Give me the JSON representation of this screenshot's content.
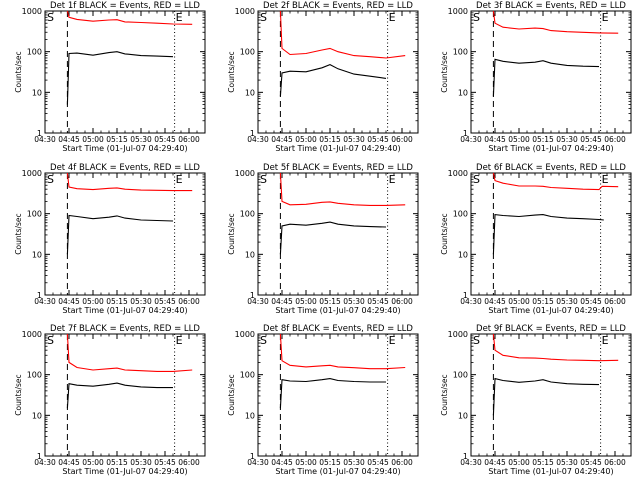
{
  "colors": {
    "background": "#ffffff",
    "axes": "#000000",
    "events": "#000000",
    "lld": "#ff0000"
  },
  "chart_data": [
    {
      "type": "line",
      "title": "Det 1f BLACK = Events, RED = LLD",
      "xlabel": "Start Time (01-Jul-07 04:29:40)",
      "ylabel": "Counts/sec",
      "x_ticks": [
        "04:30",
        "04:45",
        "05:00",
        "05:15",
        "05:30",
        "05:45",
        "06:00"
      ],
      "x_tick_minutes": [
        0,
        15,
        30,
        45,
        60,
        75,
        90
      ],
      "y_ticks": [
        "1",
        "10",
        "100",
        "1000"
      ],
      "yscale": "log",
      "ylim": [
        1,
        1000
      ],
      "xlim_minutes": [
        0,
        100
      ],
      "start_marker": {
        "label": "S",
        "minute": 14
      },
      "end_marker": {
        "label": "E",
        "minute": 81
      },
      "dashed_line_minute": 14,
      "dotted_line_minute": 81,
      "series": [
        {
          "name": "BLACK = Events",
          "color": "#000000",
          "x": [
            14,
            15,
            20,
            30,
            40,
            45,
            50,
            60,
            70,
            80
          ],
          "y": [
            5,
            90,
            92,
            82,
            95,
            100,
            88,
            80,
            78,
            75
          ]
        },
        {
          "name": "RED = LLD",
          "color": "#ff0000",
          "x": [
            14,
            15,
            20,
            30,
            40,
            45,
            50,
            60,
            70,
            80,
            92
          ],
          "y": [
            1000,
            700,
            620,
            560,
            600,
            610,
            540,
            520,
            500,
            480,
            470
          ]
        }
      ]
    },
    {
      "type": "line",
      "title": "Det 2f BLACK = Events, RED = LLD",
      "xlabel": "Start Time (01-Jul-07 04:29:40)",
      "ylabel": "Counts/sec",
      "x_ticks": [
        "04:30",
        "04:45",
        "05:00",
        "05:15",
        "05:30",
        "05:45",
        "06:00"
      ],
      "x_tick_minutes": [
        0,
        15,
        30,
        45,
        60,
        75,
        90
      ],
      "y_ticks": [
        "1",
        "10",
        "100",
        "1000"
      ],
      "yscale": "log",
      "ylim": [
        1,
        1000
      ],
      "xlim_minutes": [
        0,
        100
      ],
      "start_marker": {
        "label": "S",
        "minute": 14
      },
      "end_marker": {
        "label": "E",
        "minute": 81
      },
      "dashed_line_minute": 14,
      "dotted_line_minute": 81,
      "series": [
        {
          "name": "BLACK = Events",
          "color": "#000000",
          "x": [
            14,
            15,
            20,
            30,
            40,
            45,
            50,
            60,
            70,
            80
          ],
          "y": [
            8,
            30,
            33,
            32,
            40,
            48,
            38,
            28,
            25,
            22
          ]
        },
        {
          "name": "RED = LLD",
          "color": "#ff0000",
          "x": [
            14,
            15,
            20,
            30,
            40,
            45,
            50,
            60,
            70,
            80,
            92
          ],
          "y": [
            1000,
            120,
            85,
            90,
            110,
            120,
            100,
            80,
            75,
            70,
            80
          ]
        }
      ]
    },
    {
      "type": "line",
      "title": "Det 3f BLACK = Events, RED = LLD",
      "xlabel": "Start Time (01-Jul-07 04:29:40)",
      "ylabel": "Counts/sec",
      "x_ticks": [
        "04:30",
        "04:45",
        "05:00",
        "05:15",
        "05:30",
        "05:45",
        "06:00"
      ],
      "x_tick_minutes": [
        0,
        15,
        30,
        45,
        60,
        75,
        90
      ],
      "y_ticks": [
        "1",
        "10",
        "100",
        "1000"
      ],
      "yscale": "log",
      "ylim": [
        1,
        1000
      ],
      "xlim_minutes": [
        0,
        100
      ],
      "start_marker": {
        "label": "S",
        "minute": 14
      },
      "end_marker": {
        "label": "E",
        "minute": 81
      },
      "dashed_line_minute": 14,
      "dotted_line_minute": 81,
      "series": [
        {
          "name": "BLACK = Events",
          "color": "#000000",
          "x": [
            14,
            15,
            20,
            30,
            40,
            45,
            50,
            60,
            70,
            80
          ],
          "y": [
            8,
            65,
            58,
            52,
            55,
            60,
            52,
            46,
            44,
            43
          ]
        },
        {
          "name": "RED = LLD",
          "color": "#ff0000",
          "x": [
            14,
            15,
            20,
            30,
            40,
            45,
            50,
            60,
            70,
            80,
            92
          ],
          "y": [
            1000,
            500,
            400,
            360,
            380,
            370,
            330,
            310,
            300,
            290,
            285
          ]
        }
      ]
    },
    {
      "type": "line",
      "title": "Det 4f BLACK = Events, RED = LLD",
      "xlabel": "Start Time (01-Jul-07 04:29:40)",
      "ylabel": "Counts/sec",
      "x_ticks": [
        "04:30",
        "04:45",
        "05:00",
        "05:15",
        "05:30",
        "05:45",
        "06:00"
      ],
      "x_tick_minutes": [
        0,
        15,
        30,
        45,
        60,
        75,
        90
      ],
      "y_ticks": [
        "1",
        "10",
        "100",
        "1000"
      ],
      "yscale": "log",
      "ylim": [
        1,
        1000
      ],
      "xlim_minutes": [
        0,
        100
      ],
      "start_marker": {
        "label": "S",
        "minute": 14
      },
      "end_marker": {
        "label": "E",
        "minute": 81
      },
      "dashed_line_minute": 14,
      "dotted_line_minute": 81,
      "series": [
        {
          "name": "BLACK = Events",
          "color": "#000000",
          "x": [
            14,
            15,
            20,
            30,
            40,
            45,
            50,
            60,
            70,
            80
          ],
          "y": [
            10,
            90,
            85,
            75,
            82,
            88,
            78,
            70,
            68,
            66
          ]
        },
        {
          "name": "RED = LLD",
          "color": "#ff0000",
          "x": [
            14,
            15,
            20,
            30,
            40,
            45,
            50,
            60,
            70,
            80,
            92
          ],
          "y": [
            1000,
            450,
            410,
            390,
            420,
            430,
            400,
            380,
            375,
            370,
            370
          ]
        }
      ]
    },
    {
      "type": "line",
      "title": "Det 5f BLACK = Events, RED = LLD",
      "xlabel": "Start Time (01-Jul-07 04:29:40)",
      "ylabel": "Counts/sec",
      "x_ticks": [
        "04:30",
        "04:45",
        "05:00",
        "05:15",
        "05:30",
        "05:45",
        "06:00"
      ],
      "x_tick_minutes": [
        0,
        15,
        30,
        45,
        60,
        75,
        90
      ],
      "y_ticks": [
        "1",
        "10",
        "100",
        "1000"
      ],
      "yscale": "log",
      "ylim": [
        1,
        1000
      ],
      "xlim_minutes": [
        0,
        100
      ],
      "start_marker": {
        "label": "S",
        "minute": 14
      },
      "end_marker": {
        "label": "E",
        "minute": 81
      },
      "dashed_line_minute": 14,
      "dotted_line_minute": 81,
      "series": [
        {
          "name": "BLACK = Events",
          "color": "#000000",
          "x": [
            14,
            15,
            20,
            30,
            40,
            45,
            50,
            60,
            70,
            80
          ],
          "y": [
            10,
            50,
            55,
            52,
            58,
            62,
            55,
            50,
            48,
            47
          ]
        },
        {
          "name": "RED = LLD",
          "color": "#ff0000",
          "x": [
            14,
            15,
            20,
            30,
            40,
            45,
            50,
            60,
            70,
            80,
            92
          ],
          "y": [
            1000,
            200,
            165,
            170,
            190,
            195,
            180,
            165,
            160,
            160,
            165
          ]
        }
      ]
    },
    {
      "type": "line",
      "title": "Det 6f BLACK = Events, RED = LLD",
      "xlabel": "Start Time (01-Jul-07 04:29:40)",
      "ylabel": "Counts/sec",
      "x_ticks": [
        "04:30",
        "04:45",
        "05:00",
        "05:15",
        "05:30",
        "05:45",
        "06:00"
      ],
      "x_tick_minutes": [
        0,
        15,
        30,
        45,
        60,
        75,
        90
      ],
      "y_ticks": [
        "1",
        "10",
        "100",
        "1000"
      ],
      "yscale": "log",
      "ylim": [
        1,
        1000
      ],
      "xlim_minutes": [
        0,
        100
      ],
      "start_marker": {
        "label": "S",
        "minute": 14
      },
      "end_marker": {
        "label": "E",
        "minute": 81
      },
      "dashed_line_minute": 14,
      "dotted_line_minute": 81,
      "series": [
        {
          "name": "BLACK = Events",
          "color": "#000000",
          "x": [
            14,
            15,
            20,
            30,
            40,
            45,
            50,
            60,
            70,
            80,
            83
          ],
          "y": [
            10,
            95,
            90,
            85,
            92,
            95,
            85,
            78,
            75,
            72,
            70
          ]
        },
        {
          "name": "RED = LLD",
          "color": "#ff0000",
          "x": [
            14,
            15,
            20,
            30,
            40,
            45,
            50,
            60,
            70,
            80,
            82,
            92
          ],
          "y": [
            1000,
            650,
            560,
            480,
            480,
            470,
            440,
            420,
            400,
            390,
            470,
            460
          ]
        }
      ]
    },
    {
      "type": "line",
      "title": "Det 7f BLACK = Events, RED = LLD",
      "xlabel": "Start Time (01-Jul-07 04:29:40)",
      "ylabel": "Counts/sec",
      "x_ticks": [
        "04:30",
        "04:45",
        "05:00",
        "05:15",
        "05:30",
        "05:45",
        "06:00"
      ],
      "x_tick_minutes": [
        0,
        15,
        30,
        45,
        60,
        75,
        90
      ],
      "y_ticks": [
        "1",
        "10",
        "100",
        "1000"
      ],
      "yscale": "log",
      "ylim": [
        1,
        1000
      ],
      "xlim_minutes": [
        0,
        100
      ],
      "start_marker": {
        "label": "S",
        "minute": 14
      },
      "end_marker": {
        "label": "E",
        "minute": 81
      },
      "dashed_line_minute": 14,
      "dotted_line_minute": 81,
      "series": [
        {
          "name": "BLACK = Events",
          "color": "#000000",
          "x": [
            14,
            15,
            20,
            30,
            40,
            45,
            50,
            60,
            70,
            80
          ],
          "y": [
            15,
            60,
            55,
            52,
            58,
            62,
            55,
            50,
            48,
            48
          ]
        },
        {
          "name": "RED = LLD",
          "color": "#ff0000",
          "x": [
            14,
            15,
            20,
            30,
            40,
            45,
            50,
            60,
            70,
            80,
            92
          ],
          "y": [
            1000,
            200,
            150,
            130,
            140,
            145,
            130,
            125,
            120,
            120,
            130
          ]
        }
      ]
    },
    {
      "type": "line",
      "title": "Det 8f BLACK = Events, RED = LLD",
      "xlabel": "Start Time (01-Jul-07 04:29:40)",
      "ylabel": "Counts/sec",
      "x_ticks": [
        "04:30",
        "04:45",
        "05:00",
        "05:15",
        "05:30",
        "05:45",
        "06:00"
      ],
      "x_tick_minutes": [
        0,
        15,
        30,
        45,
        60,
        75,
        90
      ],
      "y_ticks": [
        "1",
        "10",
        "100",
        "1000"
      ],
      "yscale": "log",
      "ylim": [
        1,
        1000
      ],
      "xlim_minutes": [
        0,
        100
      ],
      "start_marker": {
        "label": "S",
        "minute": 14
      },
      "end_marker": {
        "label": "E",
        "minute": 81
      },
      "dashed_line_minute": 14,
      "dotted_line_minute": 81,
      "series": [
        {
          "name": "BLACK = Events",
          "color": "#000000",
          "x": [
            14,
            15,
            20,
            30,
            40,
            45,
            50,
            60,
            70,
            80
          ],
          "y": [
            15,
            75,
            70,
            68,
            75,
            80,
            72,
            68,
            66,
            66
          ]
        },
        {
          "name": "RED = LLD",
          "color": "#ff0000",
          "x": [
            14,
            15,
            20,
            30,
            40,
            45,
            50,
            60,
            70,
            80,
            92
          ],
          "y": [
            1000,
            220,
            170,
            155,
            165,
            170,
            155,
            148,
            140,
            140,
            150
          ]
        }
      ]
    },
    {
      "type": "line",
      "title": "Det 9f BLACK = Events, RED = LLD",
      "xlabel": "Start Time (01-Jul-07 04:29:40)",
      "ylabel": "Counts/sec",
      "x_ticks": [
        "04:30",
        "04:45",
        "05:00",
        "05:15",
        "05:30",
        "05:45",
        "06:00"
      ],
      "x_tick_minutes": [
        0,
        15,
        30,
        45,
        60,
        75,
        90
      ],
      "y_ticks": [
        "1",
        "10",
        "100",
        "1000"
      ],
      "yscale": "log",
      "ylim": [
        1,
        1000
      ],
      "xlim_minutes": [
        0,
        100
      ],
      "start_marker": {
        "label": "S",
        "minute": 14
      },
      "end_marker": {
        "label": "E",
        "minute": 81
      },
      "dashed_line_minute": 14,
      "dotted_line_minute": 81,
      "series": [
        {
          "name": "BLACK = Events",
          "color": "#000000",
          "x": [
            14,
            15,
            20,
            30,
            40,
            45,
            50,
            60,
            70,
            80
          ],
          "y": [
            10,
            80,
            72,
            65,
            70,
            75,
            66,
            60,
            58,
            57
          ]
        },
        {
          "name": "RED = LLD",
          "color": "#ff0000",
          "x": [
            14,
            15,
            20,
            30,
            40,
            45,
            50,
            60,
            70,
            80,
            92
          ],
          "y": [
            1000,
            400,
            300,
            260,
            255,
            250,
            240,
            230,
            225,
            220,
            225
          ]
        }
      ]
    }
  ]
}
